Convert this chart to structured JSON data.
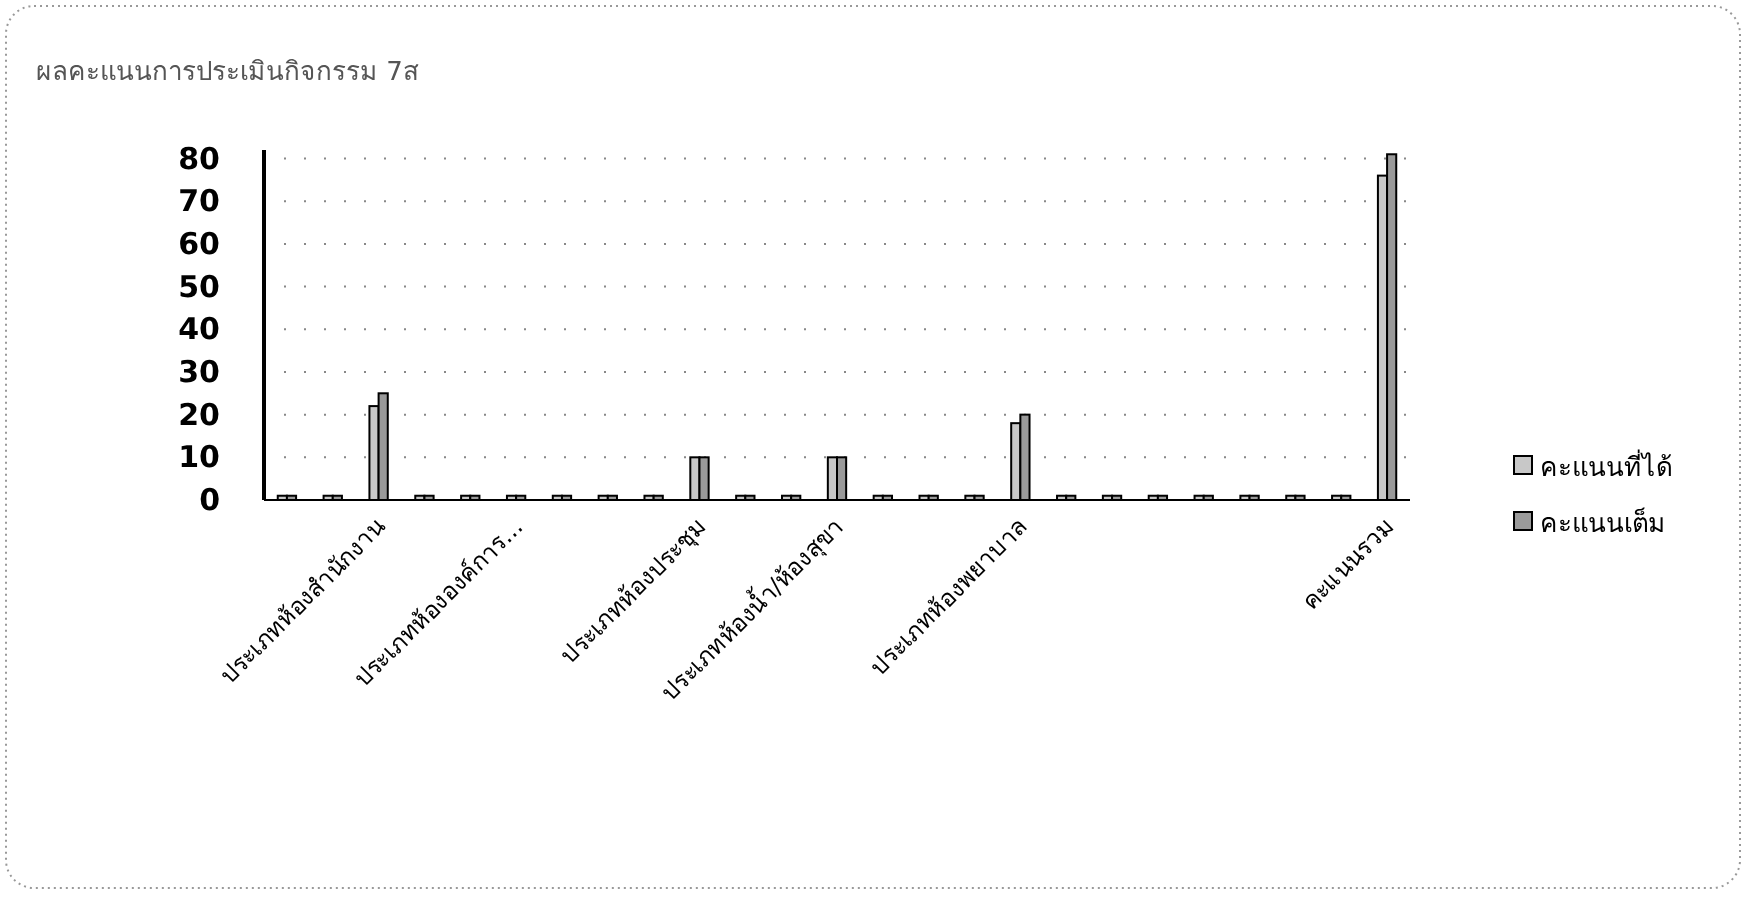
{
  "chart_data": {
    "type": "bar",
    "title": "ผลคะแนนการประเมินกิจกรรม 7ส",
    "categories": [
      null,
      null,
      "ประเภทห้องสำนักงาน",
      null,
      null,
      "ประเภทห้ององค์การ...",
      null,
      null,
      null,
      "ประเภทห้องประชุม",
      null,
      null,
      "ประเภทห้องน้ำ/ห้องสุขา",
      null,
      null,
      null,
      "ประเภทห้องพยาบาล",
      null,
      null,
      null,
      null,
      null,
      null,
      null,
      "คะแนนรวม"
    ],
    "series": [
      {
        "name": "คะแนนที่ได้",
        "color": "#c8c8c8",
        "values": [
          1,
          1,
          22,
          1,
          1,
          1,
          1,
          1,
          1,
          10,
          1,
          1,
          10,
          1,
          1,
          1,
          18,
          1,
          1,
          1,
          1,
          1,
          1,
          1,
          76
        ]
      },
      {
        "name": "คะแนนเต็ม",
        "color": "#9a9a9a",
        "values": [
          1,
          1,
          25,
          1,
          1,
          1,
          1,
          1,
          1,
          10,
          1,
          1,
          10,
          1,
          1,
          1,
          20,
          1,
          1,
          1,
          1,
          1,
          1,
          1,
          81
        ]
      }
    ],
    "ylim": [
      0,
      82
    ],
    "yticks": [
      0,
      10,
      20,
      30,
      40,
      50,
      60,
      70,
      80
    ],
    "grid": "y",
    "legend": "right"
  }
}
